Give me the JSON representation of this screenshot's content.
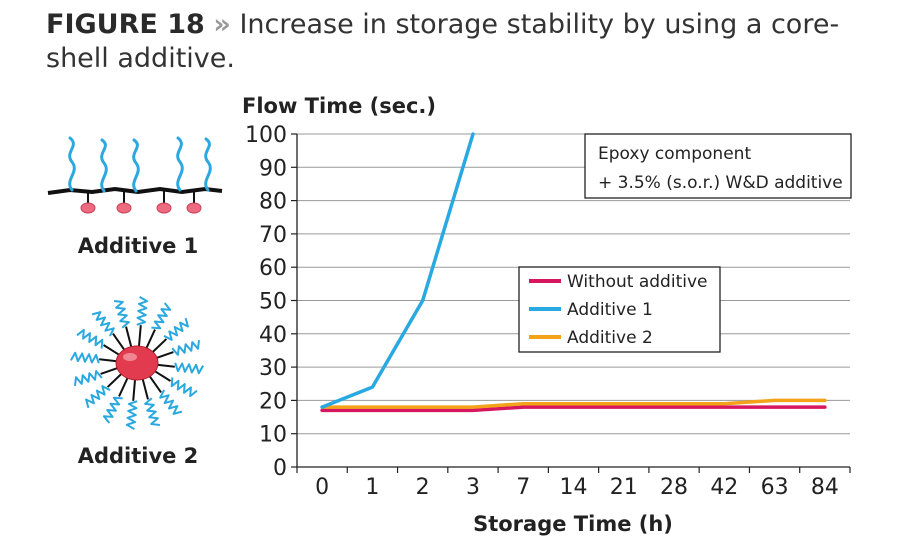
{
  "figure": {
    "number": "FIGURE 18",
    "separator": "»",
    "caption": "Increase in storage stability by using a core-shell additive."
  },
  "molecules": [
    {
      "label": "Additive 1",
      "icon": "linear-polymer-additive-icon"
    },
    {
      "label": "Additive 2",
      "icon": "star-core-shell-additive-icon"
    }
  ],
  "chart_data": {
    "type": "line",
    "ylabel": "Flow Time (sec.)",
    "xlabel": "Storage Time (h)",
    "categories": [
      "0",
      "1",
      "2",
      "3",
      "7",
      "14",
      "21",
      "28",
      "42",
      "63",
      "84"
    ],
    "ylim": [
      0,
      100
    ],
    "yticks": [
      0,
      10,
      20,
      30,
      40,
      50,
      60,
      70,
      80,
      90,
      100
    ],
    "grid": true,
    "note": [
      "Epoxy component",
      "+ 3.5% (s.o.r.) W&D additive"
    ],
    "legend_position": "center-right",
    "series": [
      {
        "name": "Without additive",
        "color": "#d6175f",
        "values": [
          17,
          17,
          17,
          17,
          18,
          18,
          18,
          18,
          18,
          18,
          18
        ]
      },
      {
        "name": "Additive 1",
        "color": "#29a9e1",
        "values": [
          18,
          24,
          50,
          100,
          null,
          null,
          null,
          null,
          null,
          null,
          null
        ]
      },
      {
        "name": "Additive 2",
        "color": "#f5a21b",
        "values": [
          18,
          18,
          18,
          18,
          19,
          19,
          19,
          19,
          19,
          20,
          20
        ]
      }
    ]
  }
}
